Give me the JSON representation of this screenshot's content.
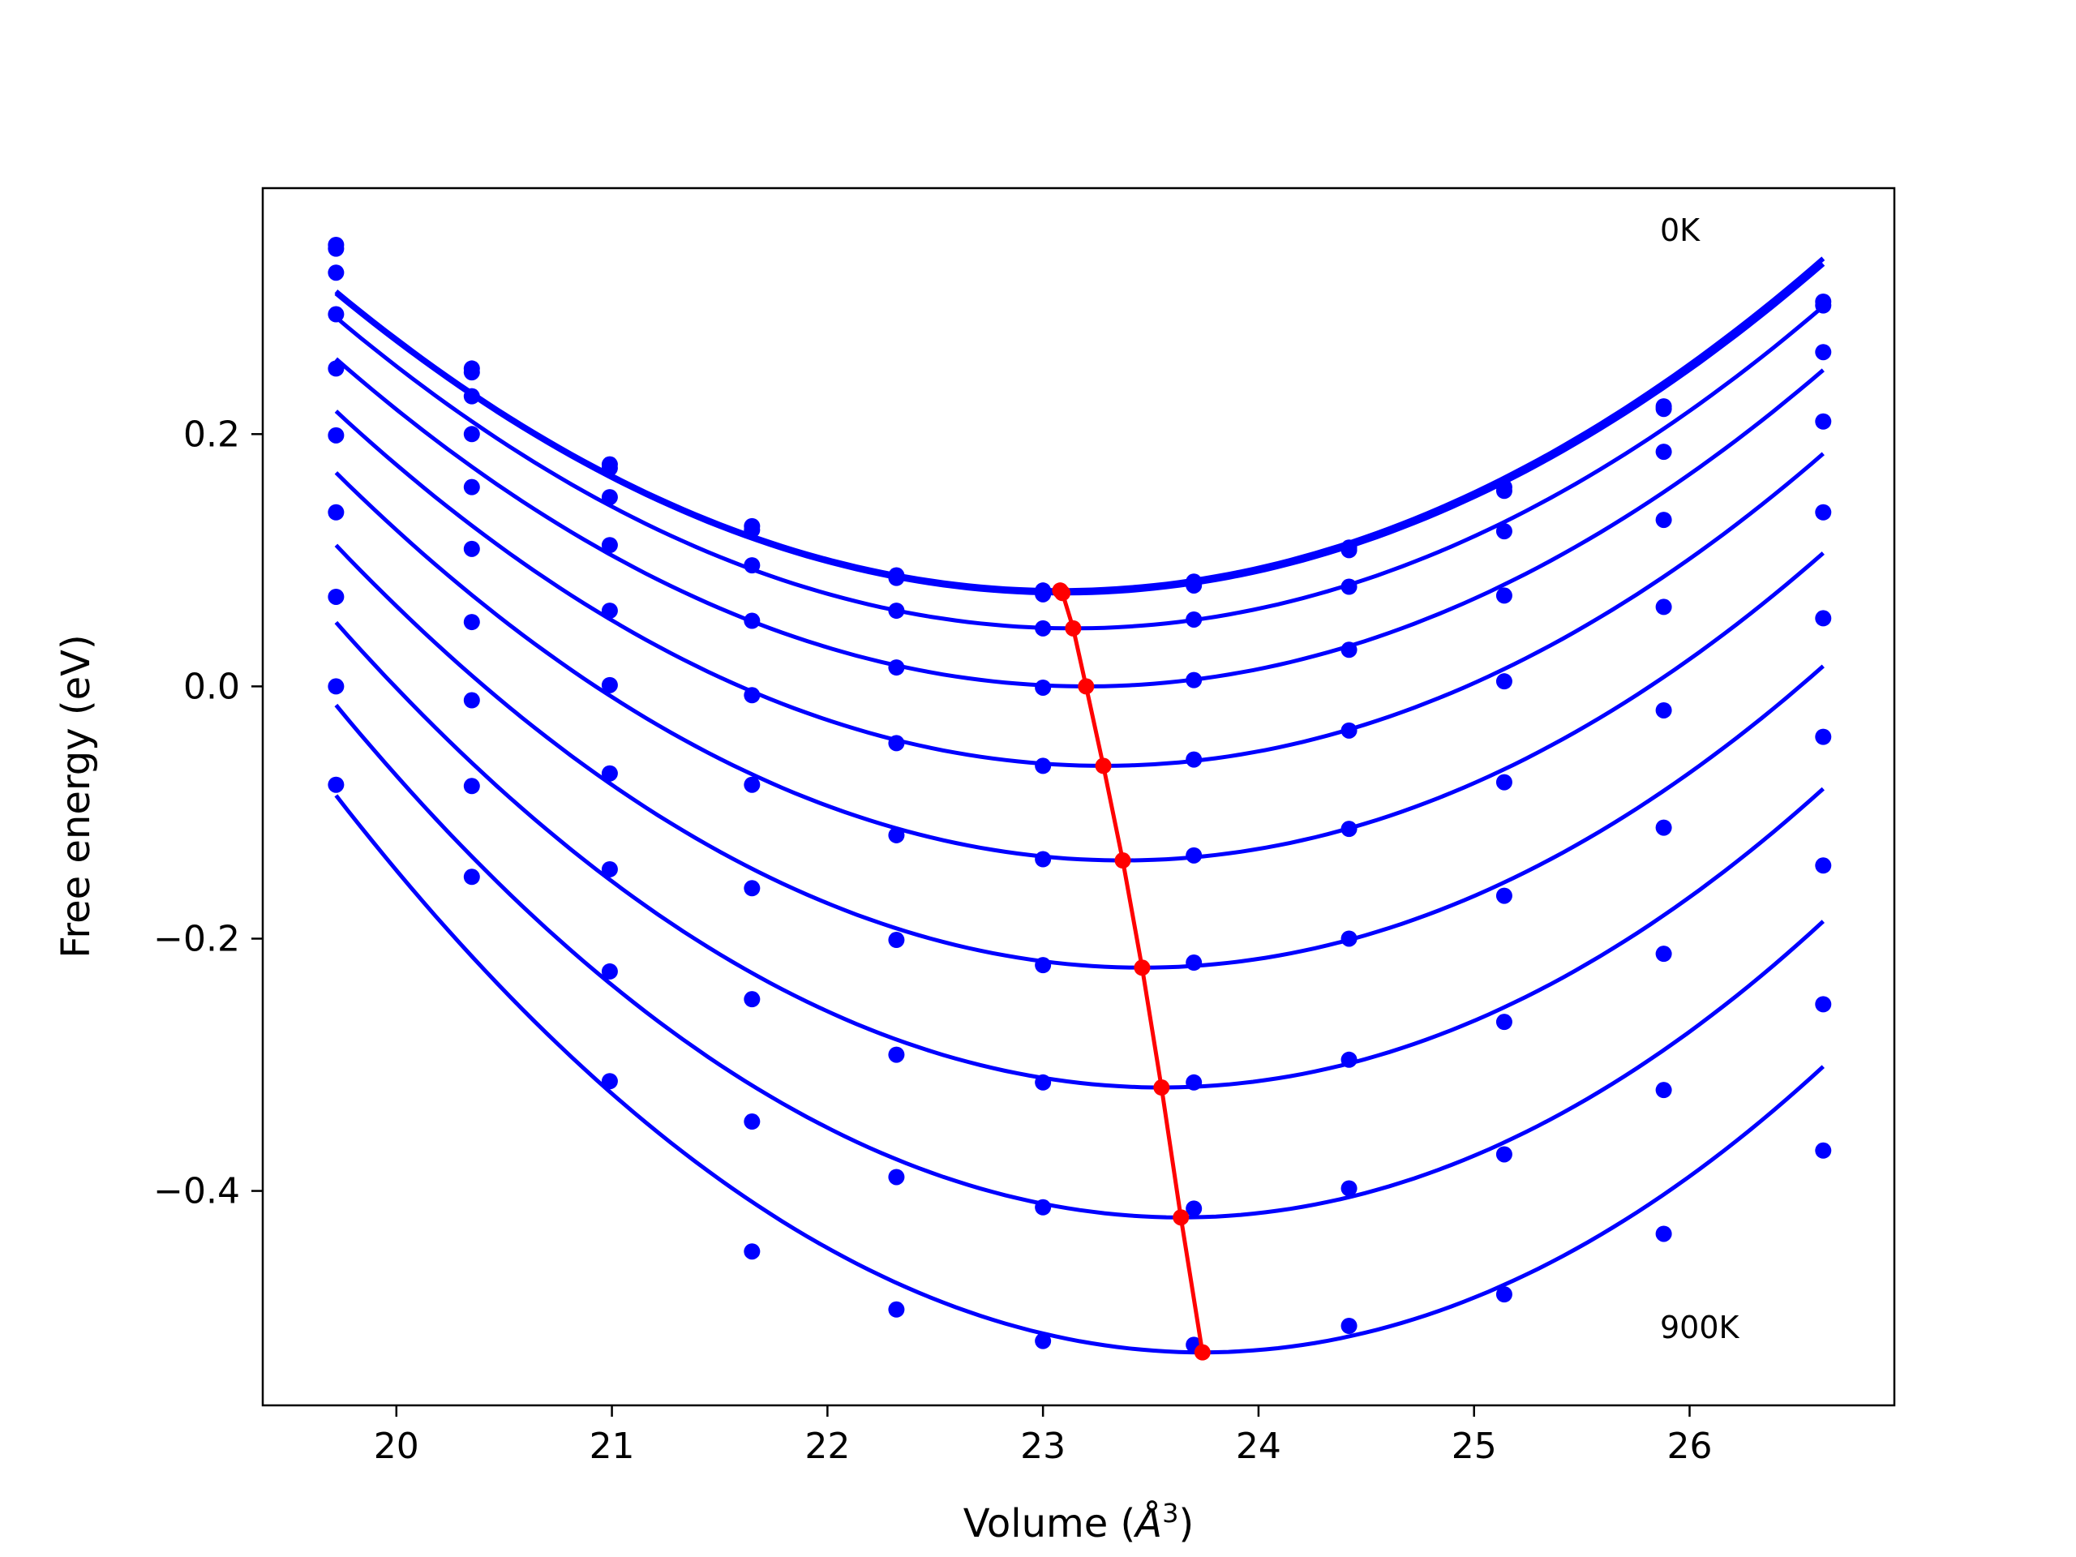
{
  "chart_data": {
    "type": "scatter",
    "title": "",
    "xlabel_main": "Volume (",
    "xlabel_unit": "Å",
    "xlabel_sup": "3",
    "xlabel_close": ")",
    "ylabel": "Free energy (eV)",
    "xlim": [
      19.38,
      26.95
    ],
    "ylim": [
      -0.57,
      0.395
    ],
    "xticks": [
      20,
      21,
      22,
      23,
      24,
      25,
      26
    ],
    "xtick_labels": [
      "20",
      "21",
      "22",
      "23",
      "24",
      "25",
      "26"
    ],
    "yticks": [
      -0.4,
      -0.2,
      0.0,
      0.2
    ],
    "ytick_labels": [
      "−0.4",
      "−0.2",
      "0.0",
      "0.2"
    ],
    "annotations": [
      {
        "text": "0K",
        "x": 25.88,
        "y": 0.36
      },
      {
        "text": "900K",
        "x": 25.88,
        "y": -0.51
      }
    ],
    "colors": {
      "points": "#0000ff",
      "curves": "#0000ff",
      "minimum_path": "#ff0000"
    },
    "volumes": [
      19.72,
      20.35,
      20.99,
      21.65,
      22.32,
      23.0,
      23.7,
      24.42,
      25.14,
      25.88,
      26.62
    ],
    "series": [
      {
        "values": [
          0.35,
          0.252,
          0.176,
          0.127,
          0.088,
          0.076,
          0.083,
          0.11,
          0.158,
          0.222,
          0.305
        ],
        "fit_min_x": 23.08,
        "fit_min_y": 0.076
      },
      {
        "values": [
          0.347,
          0.249,
          0.173,
          0.124,
          0.086,
          0.073,
          0.08,
          0.108,
          0.155,
          0.22,
          0.302
        ],
        "fit_min_x": 23.09,
        "fit_min_y": 0.074
      },
      {
        "values": [
          0.328,
          0.23,
          0.15,
          0.096,
          0.06,
          0.046,
          0.053,
          0.079,
          0.123,
          0.186,
          0.265
        ],
        "fit_min_x": 23.14,
        "fit_min_y": 0.046
      },
      {
        "values": [
          0.295,
          0.2,
          0.112,
          0.052,
          0.015,
          -0.001,
          0.005,
          0.029,
          0.072,
          0.132,
          0.21
        ],
        "fit_min_x": 23.2,
        "fit_min_y": 0.0
      },
      {
        "values": [
          0.252,
          0.158,
          0.06,
          -0.007,
          -0.045,
          -0.063,
          -0.058,
          -0.035,
          0.004,
          0.063,
          0.138
        ],
        "fit_min_x": 23.28,
        "fit_min_y": -0.063
      },
      {
        "values": [
          0.199,
          0.109,
          0.001,
          -0.078,
          -0.118,
          -0.137,
          -0.134,
          -0.113,
          -0.076,
          -0.019,
          0.054
        ],
        "fit_min_x": 23.37,
        "fit_min_y": -0.138
      },
      {
        "values": [
          0.138,
          0.051,
          -0.069,
          -0.16,
          -0.201,
          -0.221,
          -0.219,
          -0.2,
          -0.166,
          -0.112,
          -0.04
        ],
        "fit_min_x": 23.46,
        "fit_min_y": -0.223
      },
      {
        "values": [
          0.071,
          -0.011,
          -0.145,
          -0.248,
          -0.292,
          -0.314,
          -0.314,
          -0.296,
          -0.266,
          -0.212,
          -0.142
        ],
        "fit_min_x": 23.55,
        "fit_min_y": -0.318
      },
      {
        "values": [
          0.0,
          -0.079,
          -0.226,
          -0.345,
          -0.389,
          -0.413,
          -0.414,
          -0.398,
          -0.371,
          -0.32,
          -0.252
        ],
        "fit_min_x": 23.64,
        "fit_min_y": -0.421
      },
      {
        "values": [
          -0.078,
          -0.151,
          -0.313,
          -0.448,
          -0.494,
          -0.519,
          -0.522,
          -0.507,
          -0.482,
          -0.434,
          -0.368
        ],
        "fit_min_x": 23.74,
        "fit_min_y": -0.528
      }
    ],
    "minimum_path": {
      "x": [
        23.08,
        23.09,
        23.14,
        23.2,
        23.28,
        23.37,
        23.46,
        23.55,
        23.64,
        23.74
      ],
      "y": [
        0.076,
        0.074,
        0.046,
        0.0,
        -0.063,
        -0.138,
        -0.223,
        -0.318,
        -0.421,
        -0.528
      ]
    }
  }
}
